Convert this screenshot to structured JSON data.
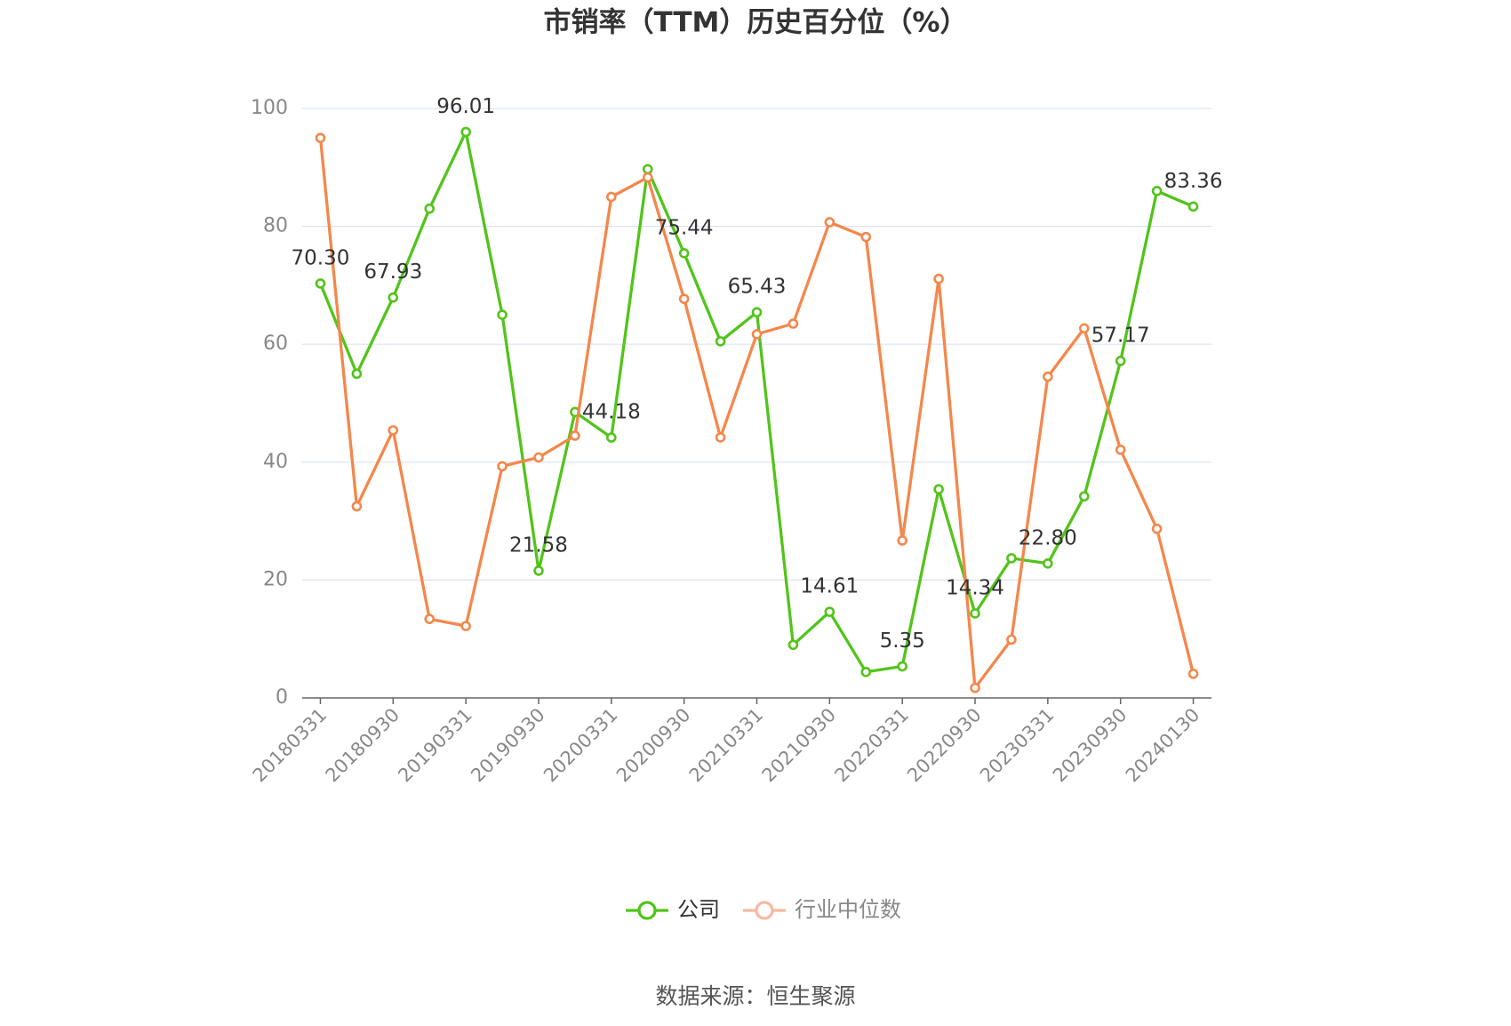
{
  "chart_data": {
    "type": "line",
    "title": "市销率（TTM）历史百分位（%）",
    "categories": [
      "20180331",
      null,
      "20180930",
      null,
      "20190331",
      null,
      "20190930",
      null,
      "20200331",
      null,
      "20200930",
      null,
      "20210331",
      null,
      "20210930",
      null,
      "20220331",
      null,
      "20220930",
      null,
      "20230331",
      null,
      "20230930",
      null,
      "20240130"
    ],
    "series": [
      {
        "name": "公司",
        "color": "#52c41a",
        "values": [
          70.3,
          55,
          67.93,
          83,
          96.01,
          65,
          21.58,
          48.5,
          44.18,
          89.7,
          75.44,
          60.5,
          65.43,
          9,
          14.61,
          4.4,
          5.35,
          35.4,
          14.34,
          23.7,
          22.8,
          34.2,
          57.17,
          86,
          83.36
        ],
        "value_labels": [
          "70.30",
          null,
          "67.93",
          null,
          "96.01",
          null,
          "21.58",
          null,
          "44.18",
          null,
          "75.44",
          null,
          "65.43",
          null,
          "14.61",
          null,
          "5.35",
          null,
          "14.34",
          null,
          "22.80",
          null,
          "57.17",
          null,
          "83.36"
        ]
      },
      {
        "name": "行业中位数",
        "color": "#f4874b",
        "values": [
          95.0,
          32.5,
          45.4,
          13.4,
          12.2,
          39.3,
          40.8,
          44.5,
          85.0,
          88.3,
          67.7,
          44.2,
          61.7,
          63.5,
          80.7,
          78.2,
          26.7,
          71.1,
          1.7,
          9.9,
          54.5,
          62.7,
          42.1,
          28.7,
          4.1
        ]
      }
    ],
    "ylim": [
      0,
      100
    ],
    "yticks": [
      0,
      20,
      40,
      60,
      80,
      100
    ],
    "grid": true,
    "source": "数据来源：恒生聚源"
  }
}
